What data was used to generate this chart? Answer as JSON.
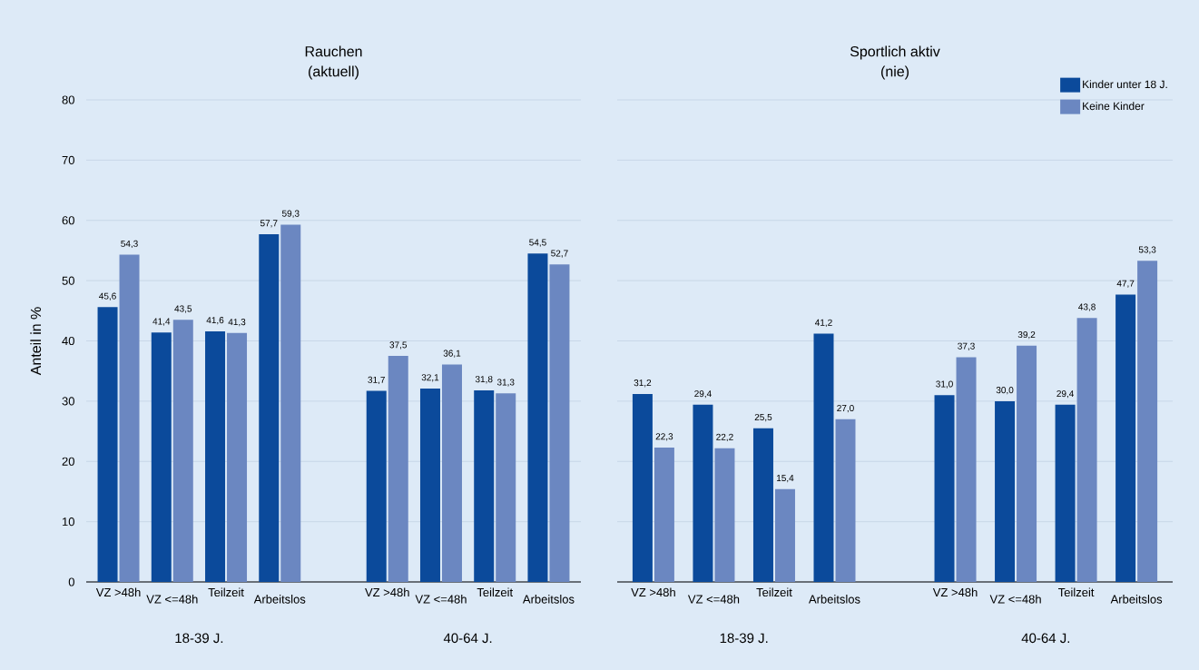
{
  "chart_data": [
    {
      "type": "bar",
      "title": "Rauchen",
      "subtitle": "(aktuell)",
      "ylabel": "Anteil in %",
      "categories": [
        "VZ >48h",
        "VZ <=48h",
        "Teilzeit",
        "Arbeitslos",
        null,
        "VZ >48h",
        "VZ <=48h",
        "Teilzeit",
        "Arbeitslos"
      ],
      "series": [
        {
          "color": "#0b4a9b",
          "values": [
            45.6,
            41.4,
            41.6,
            57.7,
            null,
            31.7,
            32.1,
            31.8,
            54.5
          ],
          "value_labels": [
            "45,6",
            "41,4",
            "41,6",
            "57,7",
            null,
            "31,7",
            "32,1",
            "31,8",
            "54,5"
          ]
        },
        {
          "color": "#6b87c1",
          "values": [
            54.3,
            43.5,
            41.3,
            59.3,
            null,
            37.5,
            36.1,
            31.3,
            52.7
          ],
          "value_labels": [
            "54,3",
            "43,5",
            "41,3",
            "59,3",
            null,
            "37,5",
            "36,1",
            "31,3",
            "52,7"
          ]
        }
      ],
      "annotations": [
        "18-39 J.",
        "40-64 J."
      ],
      "ylim": [
        0,
        80
      ],
      "yticks": [
        0,
        10,
        20,
        30,
        40,
        50,
        60,
        70,
        80
      ],
      "grid": "y",
      "legend": false
    },
    {
      "type": "bar",
      "title": "Sportlich aktiv",
      "subtitle": "(nie)",
      "categories": [
        "VZ >48h",
        "VZ <=48h",
        "Teilzeit",
        "Arbeitslos",
        null,
        "VZ >48h",
        "VZ <=48h",
        "Teilzeit",
        "Arbeitslos"
      ],
      "series": [
        {
          "name": "Kinder unter 18 J.",
          "color": "#0b4a9b",
          "values": [
            31.2,
            29.4,
            25.5,
            41.2,
            null,
            31.0,
            30.0,
            29.4,
            47.7
          ],
          "value_labels": [
            "31,2",
            "29,4",
            "25,5",
            "41,2",
            null,
            "31,0",
            "30,0",
            "29,4",
            "47,7"
          ]
        },
        {
          "name": "Keine Kinder",
          "color": "#6b87c1",
          "values": [
            22.3,
            22.2,
            15.4,
            27.0,
            null,
            37.3,
            39.2,
            43.8,
            53.3
          ],
          "value_labels": [
            "22,3",
            "22,2",
            "15,4",
            "27,0",
            null,
            "37,3",
            "39,2",
            "43,8",
            "53,3"
          ]
        }
      ],
      "annotations": [
        "18-39 J.",
        "40-64 J."
      ],
      "ylim": [
        0,
        80
      ],
      "yticks": [
        0,
        10,
        20,
        30,
        40,
        50,
        60,
        70,
        80
      ],
      "grid": "y",
      "legend": "top right",
      "tick_labels": "x"
    }
  ]
}
